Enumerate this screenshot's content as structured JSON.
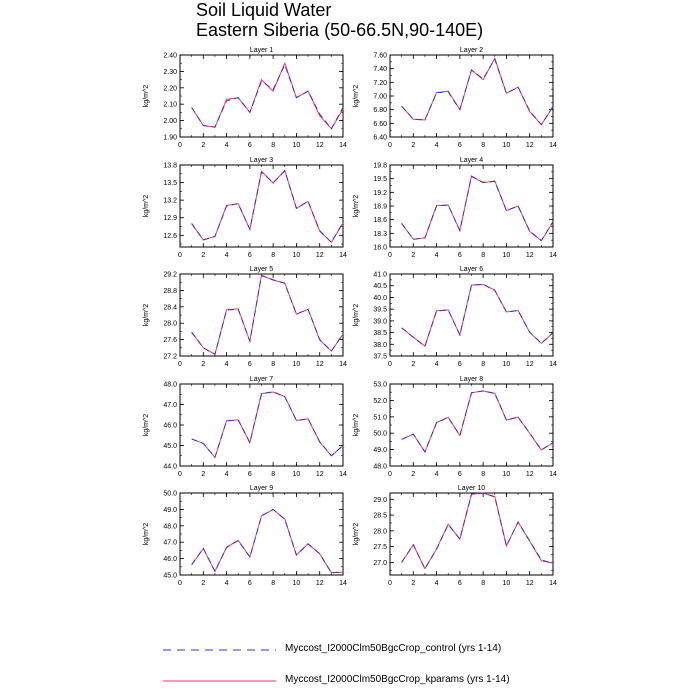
{
  "figure": {
    "title": "Soil Liquid Water",
    "subtitle": "Eastern Siberia (50-66.5N,90-140E)"
  },
  "legend": {
    "entries": [
      {
        "label": "Myccost_I2000Clm50BgcCrop_control (yrs 1-14)",
        "color": "#3333cc",
        "style": "dashed"
      },
      {
        "label": "Myccost_I2000Clm50BgcCrop_kparams (yrs 1-14)",
        "color": "#ff3366",
        "style": "solid"
      }
    ]
  },
  "chart_data": [
    {
      "type": "line",
      "title": "Layer 1",
      "ylabel": "kg/m^2",
      "xlim": [
        0,
        14
      ],
      "ylim": [
        1.9,
        2.4
      ],
      "xticks": [
        "0",
        "2",
        "4",
        "6",
        "8",
        "10",
        "12",
        "14"
      ],
      "yticks": [
        "1.90",
        "2.00",
        "2.10",
        "2.20",
        "2.30",
        "2.40"
      ],
      "x": [
        1,
        2,
        3,
        4,
        5,
        6,
        7,
        8,
        9,
        10,
        11,
        12,
        13,
        14
      ],
      "series": [
        {
          "name": "Myccost_I2000Clm50BgcCrop_control (yrs 1-14)",
          "values": [
            2.08,
            1.97,
            1.96,
            2.12,
            2.14,
            2.05,
            2.24,
            2.19,
            2.34,
            2.14,
            2.18,
            2.04,
            1.95,
            2.08
          ]
        },
        {
          "name": "Myccost_I2000Clm50BgcCrop_kparams (yrs 1-14)",
          "values": [
            2.08,
            1.97,
            1.96,
            2.13,
            2.14,
            2.05,
            2.25,
            2.18,
            2.35,
            2.14,
            2.18,
            2.03,
            1.95,
            2.07
          ]
        }
      ]
    },
    {
      "type": "line",
      "title": "Layer 2",
      "ylabel": "kg/m^2",
      "xlim": [
        0,
        14
      ],
      "ylim": [
        6.4,
        7.6
      ],
      "xticks": [
        "0",
        "2",
        "4",
        "6",
        "8",
        "10",
        "12",
        "14"
      ],
      "yticks": [
        "6.40",
        "6.60",
        "6.80",
        "7.00",
        "7.20",
        "7.40",
        "7.60"
      ],
      "x": [
        1,
        2,
        3,
        4,
        5,
        6,
        7,
        8,
        9,
        10,
        11,
        12,
        13,
        14
      ],
      "series": [
        {
          "name": "Myccost_I2000Clm50BgcCrop_control (yrs 1-14)",
          "values": [
            6.85,
            6.66,
            6.65,
            7.05,
            7.06,
            6.8,
            7.38,
            7.25,
            7.54,
            7.04,
            7.13,
            6.78,
            6.58,
            6.85
          ]
        },
        {
          "name": "Myccost_I2000Clm50BgcCrop_kparams (yrs 1-14)",
          "values": [
            6.85,
            6.66,
            6.65,
            7.05,
            7.07,
            6.8,
            7.38,
            7.24,
            7.55,
            7.04,
            7.13,
            6.77,
            6.58,
            6.84
          ]
        }
      ]
    },
    {
      "type": "line",
      "title": "Layer 3",
      "ylabel": "kg/m^2",
      "xlim": [
        0,
        14
      ],
      "ylim": [
        12.4,
        13.8
      ],
      "xticks": [
        "0",
        "2",
        "4",
        "6",
        "8",
        "10",
        "12",
        "14"
      ],
      "yticks": [
        "12.6",
        "12.9",
        "13.2",
        "13.5",
        "13.8"
      ],
      "x": [
        1,
        2,
        3,
        4,
        5,
        6,
        7,
        8,
        9,
        10,
        11,
        12,
        13,
        14
      ],
      "series": [
        {
          "name": "Myccost_I2000Clm50BgcCrop_control (yrs 1-14)",
          "values": [
            12.8,
            12.52,
            12.58,
            13.1,
            13.14,
            12.7,
            13.68,
            13.5,
            13.7,
            13.06,
            13.18,
            12.68,
            12.48,
            12.82
          ]
        },
        {
          "name": "Myccost_I2000Clm50BgcCrop_kparams (yrs 1-14)",
          "values": [
            12.8,
            12.52,
            12.58,
            13.11,
            13.14,
            12.7,
            13.69,
            13.49,
            13.71,
            13.06,
            13.18,
            12.67,
            12.48,
            12.81
          ]
        }
      ]
    },
    {
      "type": "line",
      "title": "Layer 4",
      "ylabel": "kg/m^2",
      "xlim": [
        0,
        14
      ],
      "ylim": [
        18.0,
        19.8
      ],
      "xticks": [
        "0",
        "2",
        "4",
        "6",
        "8",
        "10",
        "12",
        "14"
      ],
      "yticks": [
        "18.0",
        "18.3",
        "18.6",
        "18.9",
        "19.2",
        "19.5",
        "19.8"
      ],
      "x": [
        1,
        2,
        3,
        4,
        5,
        6,
        7,
        8,
        9,
        10,
        11,
        12,
        13,
        14
      ],
      "series": [
        {
          "name": "Myccost_I2000Clm50BgcCrop_control (yrs 1-14)",
          "values": [
            18.52,
            18.17,
            18.2,
            18.9,
            18.92,
            18.36,
            19.55,
            19.42,
            19.44,
            18.8,
            18.9,
            18.35,
            18.14,
            18.56
          ]
        },
        {
          "name": "Myccost_I2000Clm50BgcCrop_kparams (yrs 1-14)",
          "values": [
            18.52,
            18.17,
            18.2,
            18.91,
            18.92,
            18.36,
            19.56,
            19.41,
            19.45,
            18.8,
            18.9,
            18.34,
            18.14,
            18.55
          ]
        }
      ]
    },
    {
      "type": "line",
      "title": "Layer 5",
      "ylabel": "kg/m^2",
      "xlim": [
        0,
        14
      ],
      "ylim": [
        27.2,
        29.2
      ],
      "xticks": [
        "0",
        "2",
        "4",
        "6",
        "8",
        "10",
        "12",
        "14"
      ],
      "yticks": [
        "27.2",
        "27.6",
        "28.0",
        "28.4",
        "28.8",
        "29.2"
      ],
      "x": [
        1,
        2,
        3,
        4,
        5,
        6,
        7,
        8,
        9,
        10,
        11,
        12,
        13,
        14
      ],
      "series": [
        {
          "name": "Myccost_I2000Clm50BgcCrop_control (yrs 1-14)",
          "values": [
            27.78,
            27.4,
            27.24,
            28.32,
            28.34,
            27.56,
            29.16,
            29.06,
            28.97,
            28.22,
            28.34,
            27.6,
            27.32,
            27.74
          ]
        },
        {
          "name": "Myccost_I2000Clm50BgcCrop_kparams (yrs 1-14)",
          "values": [
            27.78,
            27.4,
            27.24,
            28.33,
            28.35,
            27.56,
            29.17,
            29.05,
            28.98,
            28.22,
            28.34,
            27.59,
            27.32,
            27.73
          ]
        }
      ]
    },
    {
      "type": "line",
      "title": "Layer 6",
      "ylabel": "kg/m^2",
      "xlim": [
        0,
        14
      ],
      "ylim": [
        37.5,
        41.0
      ],
      "xticks": [
        "0",
        "2",
        "4",
        "6",
        "8",
        "10",
        "12",
        "14"
      ],
      "yticks": [
        "37.5",
        "38.0",
        "38.5",
        "39.0",
        "39.5",
        "40.0",
        "40.5",
        "41.0"
      ],
      "x": [
        1,
        2,
        3,
        4,
        5,
        6,
        7,
        8,
        9,
        10,
        11,
        12,
        13,
        14
      ],
      "series": [
        {
          "name": "Myccost_I2000Clm50BgcCrop_control (yrs 1-14)",
          "values": [
            38.7,
            38.3,
            37.92,
            39.42,
            39.46,
            38.4,
            40.52,
            40.56,
            40.3,
            39.38,
            39.44,
            38.52,
            38.04,
            38.5
          ]
        },
        {
          "name": "Myccost_I2000Clm50BgcCrop_kparams (yrs 1-14)",
          "values": [
            38.7,
            38.3,
            37.92,
            39.43,
            39.47,
            38.4,
            40.53,
            40.55,
            40.31,
            39.38,
            39.44,
            38.51,
            38.04,
            38.49
          ]
        }
      ]
    },
    {
      "type": "line",
      "title": "Layer 7",
      "ylabel": "kg/m^2",
      "xlim": [
        0,
        14
      ],
      "ylim": [
        44.0,
        48.0
      ],
      "xticks": [
        "0",
        "2",
        "4",
        "6",
        "8",
        "10",
        "12",
        "14"
      ],
      "yticks": [
        "44.0",
        "45.0",
        "46.0",
        "47.0",
        "48.0"
      ],
      "x": [
        1,
        2,
        3,
        4,
        5,
        6,
        7,
        8,
        9,
        10,
        11,
        12,
        13,
        14
      ],
      "series": [
        {
          "name": "Myccost_I2000Clm50BgcCrop_control (yrs 1-14)",
          "values": [
            45.32,
            45.1,
            44.42,
            46.2,
            46.24,
            45.14,
            47.52,
            47.62,
            47.38,
            46.22,
            46.3,
            45.18,
            44.5,
            45.0
          ]
        },
        {
          "name": "Myccost_I2000Clm50BgcCrop_kparams (yrs 1-14)",
          "values": [
            45.32,
            45.1,
            44.42,
            46.21,
            46.25,
            45.14,
            47.53,
            47.61,
            47.39,
            46.22,
            46.3,
            45.17,
            44.5,
            44.99
          ]
        }
      ]
    },
    {
      "type": "line",
      "title": "Layer 8",
      "ylabel": "kg/m^2",
      "xlim": [
        0,
        14
      ],
      "ylim": [
        48.0,
        53.0
      ],
      "xticks": [
        "0",
        "2",
        "4",
        "6",
        "8",
        "10",
        "12",
        "14"
      ],
      "yticks": [
        "48.0",
        "49.0",
        "50.0",
        "51.0",
        "52.0",
        "53.0"
      ],
      "x": [
        1,
        2,
        3,
        4,
        5,
        6,
        7,
        8,
        9,
        10,
        11,
        12,
        13,
        14
      ],
      "series": [
        {
          "name": "Myccost_I2000Clm50BgcCrop_control (yrs 1-14)",
          "values": [
            49.62,
            49.94,
            48.86,
            50.64,
            50.96,
            49.86,
            52.46,
            52.58,
            52.42,
            50.8,
            50.98,
            50.0,
            48.98,
            49.42
          ]
        },
        {
          "name": "Myccost_I2000Clm50BgcCrop_kparams (yrs 1-14)",
          "values": [
            49.62,
            49.94,
            48.86,
            50.65,
            50.97,
            49.86,
            52.47,
            52.57,
            52.43,
            50.8,
            50.98,
            49.99,
            48.98,
            49.41
          ]
        }
      ]
    },
    {
      "type": "line",
      "title": "Layer 9",
      "ylabel": "kg/m^2",
      "xlim": [
        0,
        14
      ],
      "ylim": [
        45.0,
        50.0
      ],
      "xticks": [
        "0",
        "2",
        "4",
        "6",
        "8",
        "10",
        "12",
        "14"
      ],
      "yticks": [
        "45.0",
        "46.0",
        "47.0",
        "48.0",
        "49.0",
        "50.0"
      ],
      "x": [
        1,
        2,
        3,
        4,
        5,
        6,
        7,
        8,
        9,
        10,
        11,
        12,
        13,
        14
      ],
      "series": [
        {
          "name": "Myccost_I2000Clm50BgcCrop_control (yrs 1-14)",
          "values": [
            45.62,
            46.62,
            45.22,
            46.68,
            47.1,
            46.1,
            48.6,
            49.0,
            48.4,
            46.22,
            46.9,
            46.3,
            45.14,
            45.18
          ]
        },
        {
          "name": "Myccost_I2000Clm50BgcCrop_kparams (yrs 1-14)",
          "values": [
            45.62,
            46.62,
            45.22,
            46.69,
            47.11,
            46.1,
            48.61,
            48.99,
            48.41,
            46.22,
            46.9,
            46.29,
            45.14,
            45.17
          ]
        }
      ]
    },
    {
      "type": "line",
      "title": "Layer 10",
      "ylabel": "kg/m^2",
      "xlim": [
        0,
        14
      ],
      "ylim": [
        26.6,
        29.2
      ],
      "xticks": [
        "0",
        "2",
        "4",
        "6",
        "8",
        "10",
        "12",
        "14"
      ],
      "yticks": [
        "27.0",
        "27.5",
        "28.0",
        "28.5",
        "29.0"
      ],
      "x": [
        1,
        2,
        3,
        4,
        5,
        6,
        7,
        8,
        9,
        10,
        11,
        12,
        13,
        14
      ],
      "series": [
        {
          "name": "Myccost_I2000Clm50BgcCrop_control (yrs 1-14)",
          "values": [
            27.0,
            27.56,
            26.8,
            27.42,
            28.2,
            27.74,
            29.16,
            29.2,
            29.08,
            27.52,
            28.28,
            27.68,
            27.08,
            26.96
          ]
        },
        {
          "name": "Myccost_I2000Clm50BgcCrop_kparams (yrs 1-14)",
          "values": [
            27.0,
            27.56,
            26.8,
            27.43,
            28.21,
            27.74,
            29.17,
            29.19,
            29.09,
            27.52,
            28.28,
            27.67,
            27.05,
            26.98
          ]
        }
      ]
    }
  ]
}
